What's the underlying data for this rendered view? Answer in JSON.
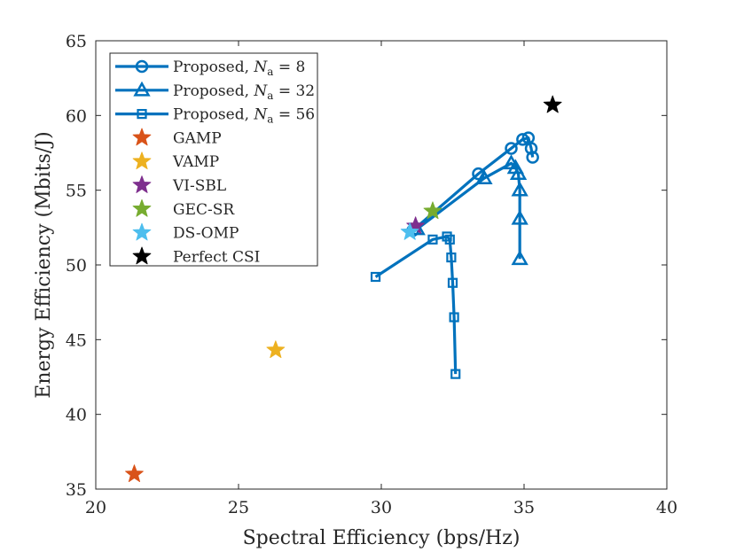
{
  "chart_data": {
    "type": "scatter",
    "title": "",
    "xlabel": "Spectral Efficiency (bps/Hz)",
    "ylabel": "Energy Efficiency (Mbits/J)",
    "xlim": [
      20,
      40
    ],
    "ylim": [
      35,
      65
    ],
    "xticks": [
      20,
      25,
      30,
      35,
      40
    ],
    "yticks": [
      35,
      40,
      45,
      50,
      55,
      60,
      65
    ],
    "grid": false,
    "legend_position": "top-left",
    "series": [
      {
        "name": "Proposed, N_a = 8",
        "legend_prefix": "Proposed, ",
        "legend_var": "N",
        "legend_sub": "a",
        "legend_suffix": " = 8",
        "marker": "circle",
        "color": "#0072BD",
        "x": [
          35.3,
          35.25,
          35.15,
          34.95,
          34.55,
          33.4,
          31.1
        ],
        "y": [
          57.2,
          57.8,
          58.5,
          58.4,
          57.8,
          56.1,
          52.3
        ]
      },
      {
        "name": "Proposed, N_a = 32",
        "legend_prefix": "Proposed, ",
        "legend_var": "N",
        "legend_sub": "a",
        "legend_suffix": " = 32",
        "marker": "triangle",
        "color": "#0072BD",
        "x": [
          34.85,
          34.85,
          34.85,
          34.8,
          34.7,
          34.55,
          33.6,
          31.25
        ],
        "y": [
          50.4,
          53.1,
          55.0,
          56.1,
          56.5,
          56.8,
          55.8,
          52.4
        ]
      },
      {
        "name": "Proposed, N_a = 56",
        "legend_prefix": "Proposed, ",
        "legend_var": "N",
        "legend_sub": "a",
        "legend_suffix": " = 56",
        "marker": "square",
        "color": "#0072BD",
        "x": [
          32.6,
          32.55,
          32.5,
          32.45,
          32.4,
          32.3,
          31.8,
          29.8
        ],
        "y": [
          42.7,
          46.5,
          48.8,
          50.5,
          51.7,
          51.9,
          51.7,
          49.2
        ]
      },
      {
        "name": "GAMP",
        "marker": "star",
        "color": "#D95319",
        "x": [
          21.35
        ],
        "y": [
          36.0
        ]
      },
      {
        "name": "VAMP",
        "marker": "star",
        "color": "#EDB120",
        "x": [
          26.3
        ],
        "y": [
          44.3
        ]
      },
      {
        "name": "VI-SBL",
        "marker": "star",
        "color": "#7E2F8E",
        "x": [
          31.2
        ],
        "y": [
          52.6
        ]
      },
      {
        "name": "GEC-SR",
        "marker": "star",
        "color": "#77AC30",
        "x": [
          31.8
        ],
        "y": [
          53.6
        ]
      },
      {
        "name": "DS-OMP",
        "marker": "star",
        "color": "#4DBEEE",
        "x": [
          31.0
        ],
        "y": [
          52.2
        ]
      },
      {
        "name": "Perfect CSI",
        "marker": "star",
        "color": "#000000",
        "x": [
          36.0
        ],
        "y": [
          60.7
        ]
      }
    ]
  }
}
